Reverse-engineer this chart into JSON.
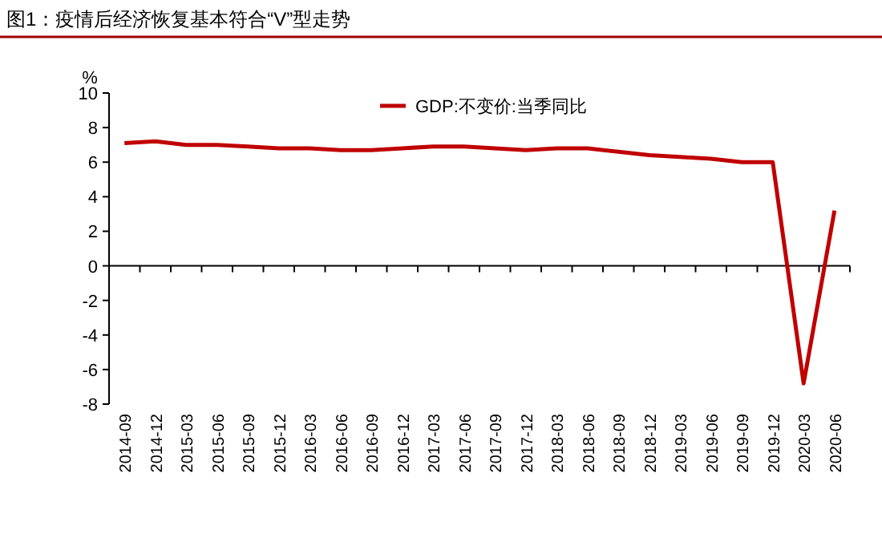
{
  "chart_data": {
    "type": "line",
    "title": "图1：疫情后经济恢复基本符合“V”型走势",
    "ylabel": "%",
    "categories": [
      "2014-09",
      "2014-12",
      "2015-03",
      "2015-06",
      "2015-09",
      "2015-12",
      "2016-03",
      "2016-06",
      "2016-09",
      "2016-12",
      "2017-03",
      "2017-06",
      "2017-09",
      "2017-12",
      "2018-03",
      "2018-06",
      "2018-09",
      "2018-12",
      "2019-03",
      "2019-06",
      "2019-09",
      "2019-12",
      "2020-03",
      "2020-06"
    ],
    "series": [
      {
        "name": "GDP:不变价:当季同比",
        "color": "#c00000",
        "values": [
          7.1,
          7.2,
          7.0,
          7.0,
          6.9,
          6.8,
          6.8,
          6.7,
          6.7,
          6.8,
          6.9,
          6.9,
          6.8,
          6.7,
          6.8,
          6.8,
          6.6,
          6.4,
          6.3,
          6.2,
          6.0,
          6.0,
          -6.8,
          3.2
        ]
      }
    ],
    "ylim": [
      -8,
      10
    ],
    "yticks": [
      -8,
      -6,
      -4,
      -2,
      0,
      2,
      4,
      6,
      8,
      10
    ],
    "legend": "top"
  }
}
